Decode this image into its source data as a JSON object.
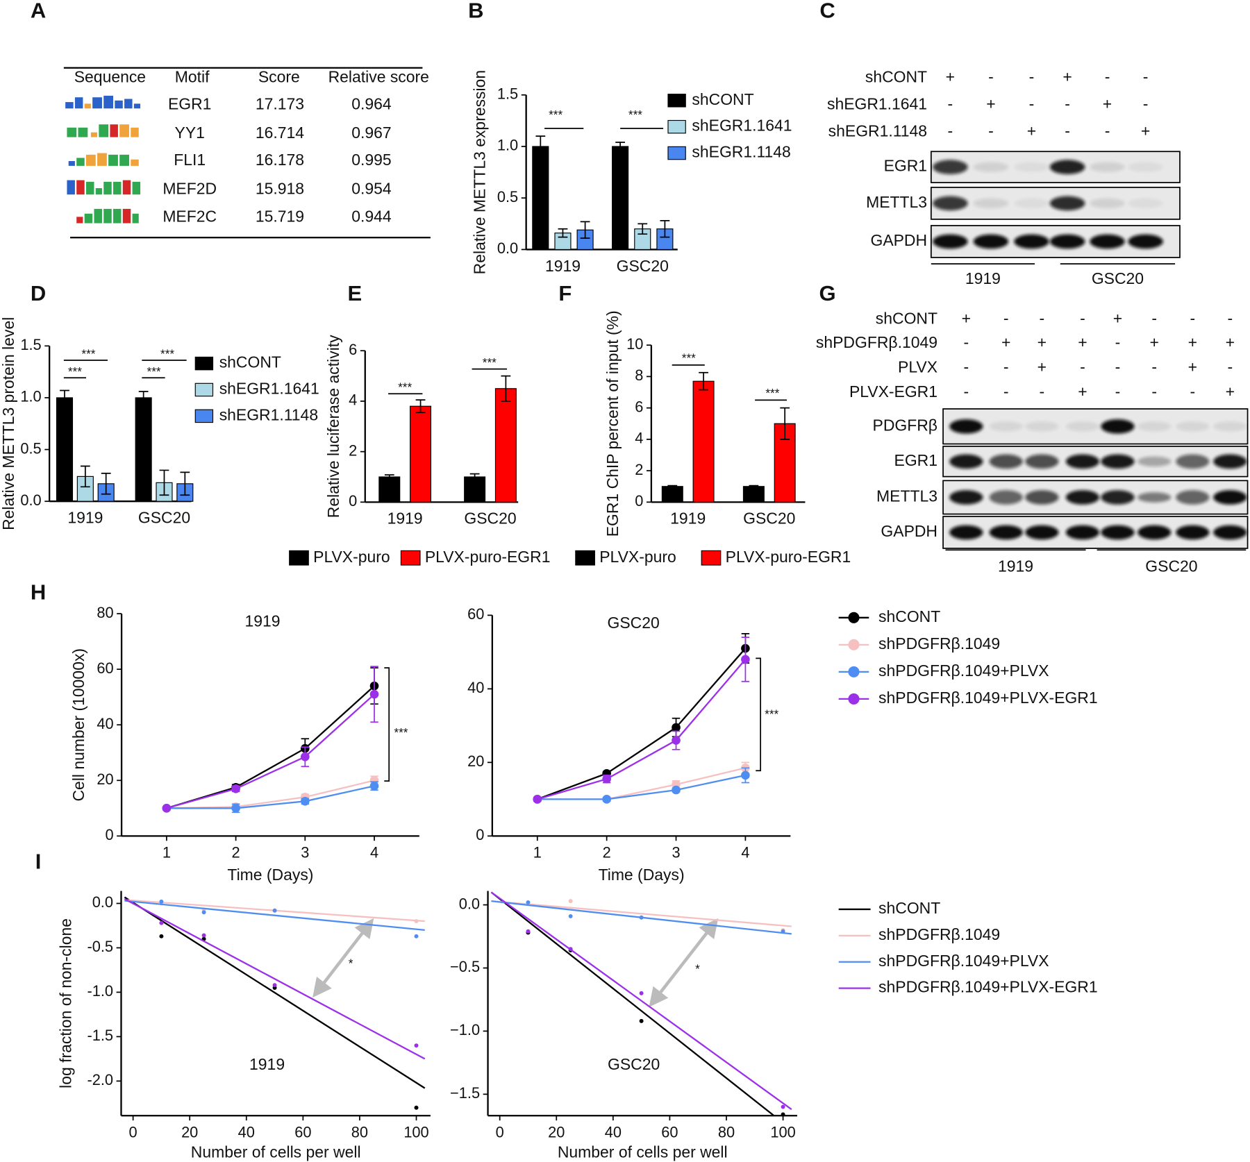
{
  "panel_labels": [
    "A",
    "B",
    "C",
    "D",
    "E",
    "F",
    "G",
    "H",
    "I"
  ],
  "table": {
    "columns": [
      "Sequence",
      "Motif",
      "Score",
      "Relative score"
    ],
    "rows": [
      [
        "EGR1",
        17.173,
        0.964
      ],
      [
        "YY1",
        16.714,
        0.967
      ],
      [
        "FLI1",
        16.178,
        0.995
      ],
      [
        "MEF2D",
        15.918,
        0.954
      ],
      [
        "MEF2C",
        15.719,
        0.944
      ]
    ]
  },
  "blots": [
    {
      "conditions": [
        {
          "name": "shCONT",
          "signs": [
            "+",
            "-",
            "-",
            "+",
            "-",
            "-"
          ]
        },
        {
          "name": "shEGR1.1641",
          "signs": [
            "-",
            "+",
            "-",
            "-",
            "+",
            "-"
          ]
        },
        {
          "name": "shEGR1.1148",
          "signs": [
            "-",
            "-",
            "+",
            "-",
            "-",
            "+"
          ]
        }
      ],
      "bands": [
        "EGR1",
        "METTL3",
        "GAPDH"
      ],
      "groups": [
        "1919",
        "GSC20"
      ]
    },
    {
      "conditions": [
        {
          "name": "shCONT",
          "signs": [
            "+",
            "-",
            "-",
            "-",
            "+",
            "-",
            "-",
            "-"
          ]
        },
        {
          "name": "shPDGFRβ.1049",
          "signs": [
            "-",
            "+",
            "+",
            "+",
            "-",
            "+",
            "+",
            "+"
          ]
        },
        {
          "name": "PLVX",
          "signs": [
            "-",
            "-",
            "+",
            "-",
            "-",
            "-",
            "+",
            "-"
          ]
        },
        {
          "name": "PLVX-EGR1",
          "signs": [
            "-",
            "-",
            "-",
            "+",
            "-",
            "-",
            "-",
            "+"
          ]
        }
      ],
      "bands": [
        "PDGFRβ",
        "EGR1",
        "METTL3",
        "GAPDH"
      ],
      "groups": [
        "1919",
        "GSC20"
      ]
    }
  ],
  "chart_data": [
    {
      "type": "bar",
      "ylabel": "Relative METTL3 expression",
      "categories": [
        "1919",
        "GSC20"
      ],
      "ylim": [
        0,
        1.5
      ],
      "yticks": [
        {
          "value": 0,
          "label": "0.0"
        },
        0.5,
        {
          "value": 1,
          "label": "1.0"
        },
        1.5
      ],
      "series": [
        {
          "name": "shCONT",
          "color": "#000000",
          "values": [
            1,
            1
          ],
          "errors": [
            0.1,
            0.04
          ]
        },
        {
          "name": "shEGR1.1641",
          "color": "#add8e6",
          "values": [
            0.16,
            0.2
          ],
          "errors": [
            0.04,
            0.05
          ]
        },
        {
          "name": "shEGR1.1148",
          "color": "#4a86f0",
          "values": [
            0.19,
            0.2
          ],
          "errors": [
            0.08,
            0.08
          ]
        }
      ],
      "annotations": [
        "***",
        "***"
      ]
    },
    {
      "type": "bar",
      "ylabel": "Relative  METTL3 protein level",
      "categories": [
        "1919",
        "GSC20"
      ],
      "ylim": [
        0,
        1.5
      ],
      "yticks": [
        {
          "value": 0,
          "label": "0.0"
        },
        0.5,
        {
          "value": 1,
          "label": "1.0"
        },
        1.5
      ],
      "series": [
        {
          "name": "shCONT",
          "color": "#000000",
          "values": [
            1,
            1
          ],
          "errors": [
            0.07,
            0.06
          ]
        },
        {
          "name": "shEGR1.1641",
          "color": "#add8e6",
          "values": [
            0.24,
            0.18
          ],
          "errors": [
            0.1,
            0.12
          ]
        },
        {
          "name": "shEGR1.1148",
          "color": "#4a86f0",
          "values": [
            0.17,
            0.17
          ],
          "errors": [
            0.1,
            0.11
          ]
        }
      ],
      "annotations": [
        "***",
        "***",
        "***",
        "***"
      ]
    },
    {
      "type": "bar",
      "ylabel": "Relative luciferase activity",
      "categories": [
        "1919",
        "GSC20"
      ],
      "ylim": [
        0,
        6
      ],
      "yticks": [
        0,
        2,
        4,
        6
      ],
      "series": [
        {
          "name": "PLVX-puro",
          "color": "#000000",
          "values": [
            1,
            1
          ],
          "errors": [
            0.08,
            0.12
          ]
        },
        {
          "name": "PLVX-puro-EGR1",
          "color": "#ff0000",
          "values": [
            3.8,
            4.5
          ],
          "errors": [
            0.25,
            0.5
          ]
        }
      ],
      "annotations": [
        "***",
        "***"
      ]
    },
    {
      "type": "bar",
      "ylabel": "EGR1 ChIP percent of input (%)",
      "categories": [
        "1919",
        "GSC20"
      ],
      "ylim": [
        0,
        10
      ],
      "yticks": [
        0,
        2,
        4,
        6,
        8,
        10
      ],
      "series": [
        {
          "name": "PLVX-puro",
          "color": "#000000",
          "values": [
            1,
            1
          ],
          "errors": [
            0.05,
            0.05
          ]
        },
        {
          "name": "PLVX-puro-EGR1",
          "color": "#ff0000",
          "values": [
            7.7,
            5.0
          ],
          "errors": [
            0.55,
            1.0
          ]
        }
      ],
      "annotations": [
        "***",
        "***"
      ]
    },
    {
      "type": "line",
      "title": "1919",
      "xlabel": "Time (Days)",
      "ylabel": "Cell number (10000x)",
      "x": [
        1,
        2,
        3,
        4
      ],
      "xlim": [
        0.35,
        4.65
      ],
      "xticks": [
        1,
        2,
        3,
        4
      ],
      "ylim": [
        0,
        80
      ],
      "yticks": [
        0,
        20,
        40,
        60,
        80
      ],
      "series": [
        {
          "color": "#000000",
          "values": [
            10,
            17.5,
            31.5,
            54
          ],
          "errors": [
            0.5,
            1,
            3.5,
            6.5
          ]
        },
        {
          "color": "#f6c0c0",
          "values": [
            10,
            10.5,
            14,
            20
          ],
          "errors": [
            0.5,
            1,
            1,
            1.5
          ]
        },
        {
          "color": "#4f8ef0",
          "values": [
            10,
            10,
            12.5,
            18
          ],
          "errors": [
            0.5,
            1.5,
            1,
            1.5
          ]
        },
        {
          "color": "#9b30e8",
          "values": [
            10,
            17,
            28.5,
            51
          ],
          "errors": [
            0.5,
            1,
            3.5,
            10
          ]
        }
      ],
      "annotations": [
        "***"
      ]
    },
    {
      "type": "line",
      "title": "GSC20",
      "xlabel": "Time (Days)",
      "x": [
        1,
        2,
        3,
        4
      ],
      "xlim": [
        0.35,
        4.65
      ],
      "xticks": [
        1,
        2,
        3,
        4
      ],
      "ylim": [
        0,
        60
      ],
      "yticks": [
        0,
        20,
        40,
        60
      ],
      "series": [
        {
          "name": "shCONT",
          "color": "#000000",
          "values": [
            10,
            17,
            29.5,
            51
          ],
          "errors": [
            0.5,
            0.5,
            2.5,
            4
          ]
        },
        {
          "name": "shPDGFRβ.1049",
          "color": "#f6c0c0",
          "values": [
            10,
            10,
            14,
            18.5
          ],
          "errors": [
            0.5,
            0.5,
            1,
            1.5
          ]
        },
        {
          "name": "shPDGFRβ.1049+PLVX",
          "color": "#4f8ef0",
          "values": [
            10,
            10,
            12.5,
            16.5
          ],
          "errors": [
            0.5,
            0.5,
            0.5,
            2
          ]
        },
        {
          "name": "shPDGFRβ.1049+PLVX-EGR1",
          "color": "#9b30e8",
          "values": [
            10,
            15.5,
            26,
            48
          ],
          "errors": [
            0.5,
            1,
            2.5,
            6
          ]
        }
      ],
      "annotations": [
        "***"
      ]
    },
    {
      "type": "scatter",
      "title": "1919",
      "xlabel": "Number of cells per well",
      "ylabel": "log fraction of non-clone",
      "x": [
        10,
        25,
        50,
        100
      ],
      "xlim": [
        -4.2,
        105
      ],
      "xticks": [
        0,
        20,
        40,
        60,
        80,
        100
      ],
      "ylim": [
        -2.39,
        0.14
      ],
      "yticks": [
        {
          "value": 0,
          "label": "0.0"
        },
        -0.5,
        {
          "value": -1,
          "label": "-1.0"
        },
        -1.5,
        {
          "value": -2,
          "label": "-2.0"
        }
      ],
      "fit_x": [
        -3,
        103
      ],
      "series": [
        {
          "color": "#000000",
          "values": [
            -0.37,
            -0.4,
            -0.95,
            -2.3
          ],
          "fit": [
            0.07,
            -2.08
          ]
        },
        {
          "color": "#f6c0c0",
          "values": [
            0.0,
            -0.07,
            -0.08,
            -0.2
          ],
          "fit": [
            0.04,
            -0.2
          ]
        },
        {
          "color": "#4f8ef0",
          "values": [
            0.02,
            -0.1,
            -0.08,
            -0.37
          ],
          "fit": [
            0.03,
            -0.3
          ]
        },
        {
          "color": "#9b30e8",
          "values": [
            -0.22,
            -0.36,
            -0.92,
            -1.6
          ],
          "fit": [
            0.05,
            -1.75
          ]
        }
      ],
      "annotations": [
        "*"
      ]
    },
    {
      "type": "scatter",
      "title": "GSC20",
      "xlabel": "Number of cells per well",
      "x": [
        10,
        25,
        50,
        100
      ],
      "xlim": [
        -4.2,
        105
      ],
      "xticks": [
        0,
        20,
        40,
        60,
        80,
        100
      ],
      "ylim": [
        -1.67,
        0.11
      ],
      "yticks": [
        {
          "value": 0,
          "label": "0.0"
        },
        {
          "value": -0.5,
          "label": "−0.5"
        },
        {
          "value": -1,
          "label": "−1.0"
        },
        {
          "value": -1.5,
          "label": "−1.5"
        }
      ],
      "fit_x": [
        -3,
        103
      ],
      "series": [
        {
          "name": "shCONT",
          "color": "#000000",
          "values": [
            -0.22,
            -0.36,
            -0.92,
            -1.66
          ],
          "fit": [
            0.1,
            -1.78
          ]
        },
        {
          "name": "shPDGFRβ.1049",
          "color": "#f6c0c0",
          "values": [
            0.01,
            0.03,
            -0.1,
            -0.2
          ],
          "fit": [
            0.03,
            -0.17
          ]
        },
        {
          "name": "shPDGFRβ.1049+PLVX",
          "color": "#4f8ef0",
          "values": [
            0.02,
            -0.09,
            -0.1,
            -0.21
          ],
          "fit": [
            0.03,
            -0.23
          ]
        },
        {
          "name": "shPDGFRβ.1049+PLVX-EGR1",
          "color": "#9b30e8",
          "values": [
            -0.21,
            -0.35,
            -0.7,
            -1.6
          ],
          "fit": [
            0.1,
            -1.62
          ]
        }
      ],
      "annotations": [
        "*"
      ]
    }
  ]
}
